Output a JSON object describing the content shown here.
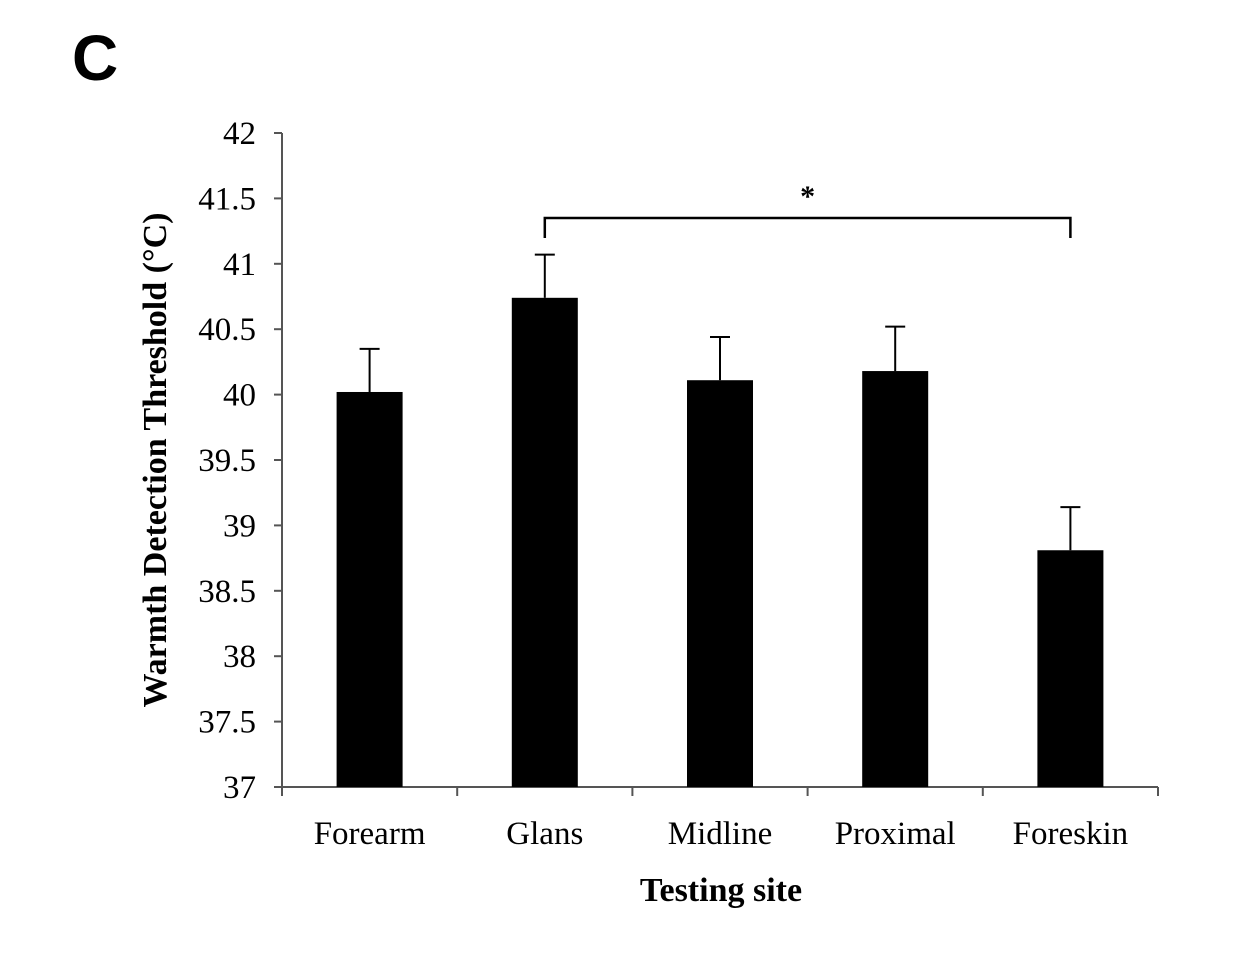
{
  "panel_label": "C",
  "chart_data": {
    "type": "bar",
    "title": "",
    "xlabel": "Testing site",
    "ylabel": "Warmth Detection Threshold (°C)",
    "categories": [
      "Forearm",
      "Glans",
      "Midline",
      "Proximal",
      "Foreskin"
    ],
    "values": [
      40.02,
      40.74,
      40.11,
      40.18,
      38.81
    ],
    "error_upper": [
      40.35,
      41.07,
      40.44,
      40.52,
      39.14
    ],
    "ylim": [
      37,
      42
    ],
    "yticks": [
      "37",
      "37.5",
      "38",
      "38.5",
      "39",
      "39.5",
      "40",
      "40.5",
      "41",
      "41.5",
      "42"
    ],
    "bar_color": "#000000",
    "grid": false,
    "legend": "none",
    "significance": {
      "from": "Glans",
      "to": "Foreskin",
      "label": "*",
      "level": 41.35
    }
  }
}
